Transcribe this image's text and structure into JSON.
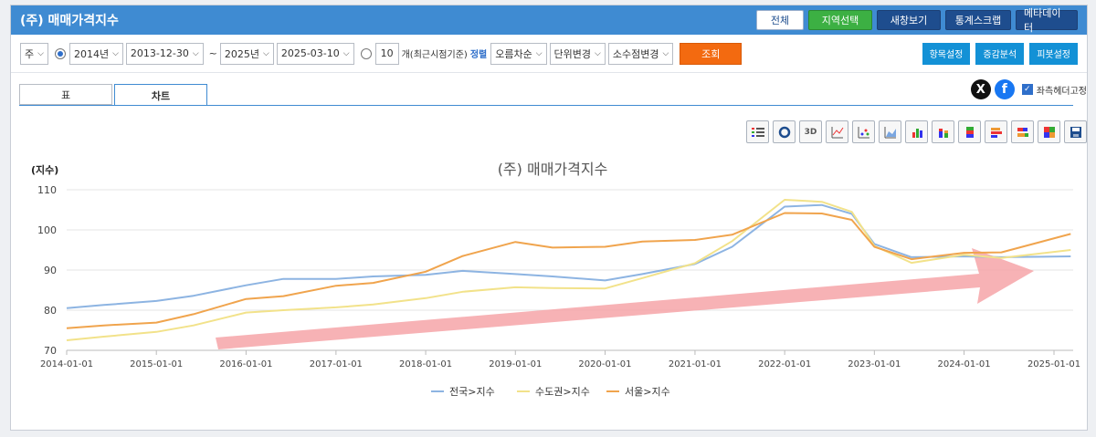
{
  "header": {
    "title": "(주) 매매가격지수",
    "buttons": [
      "전체",
      "지역선택",
      "새창보기",
      "통계스크랩",
      "메타데이터"
    ]
  },
  "controls": {
    "period": "주",
    "from_year": "2014년",
    "from_date": "2013-12-30",
    "tilde": "~",
    "to_year": "2025년",
    "to_date": "2025-03-10",
    "recent_count": "10",
    "recent_label": "개(최근시점기준)",
    "sort_label": "정렬",
    "sort_value": "오름차순",
    "unit_change": "단위변경",
    "decimal_change": "소수점변경",
    "query_label": "조회",
    "right_buttons": [
      "항목설정",
      "증감분석",
      "피봇설정"
    ]
  },
  "tabs": [
    "표",
    "차트"
  ],
  "social": {
    "x_label": "X",
    "f_label": "f",
    "fix_header_label": "좌측헤더고정"
  },
  "toolbar": {
    "icons": [
      "legend-list-icon",
      "rotate-icon",
      "3d-icon",
      "line-icon",
      "scatter-icon",
      "area-icon",
      "bar-icon",
      "stacked-bar-icon",
      "stacked-bar-alt-icon",
      "horizontal-bar-icon",
      "horizontal-stacked-icon",
      "export-image-icon",
      "save-icon"
    ],
    "threed_label": "3D"
  },
  "chart_data": {
    "type": "line",
    "title": "(주) 매매가격지수",
    "ylabel": "(지수)",
    "xlabel": "",
    "ylim": [
      70,
      110
    ],
    "yticks": [
      70,
      80,
      90,
      100,
      110
    ],
    "xticks": [
      "2014-01-01",
      "2015-01-01",
      "2016-01-01",
      "2017-01-01",
      "2018-01-01",
      "2019-01-01",
      "2020-01-01",
      "2021-01-01",
      "2022-01-01",
      "2023-01-01",
      "2024-01-01",
      "2025-01-01"
    ],
    "grid": true,
    "legend_position": "bottom",
    "annotation": "red arrow indicating upward trend",
    "series": [
      {
        "name": "전국>지수",
        "color": "#8db4e2",
        "points": [
          [
            "2014-01-01",
            80.5
          ],
          [
            "2014-06-01",
            81.3
          ],
          [
            "2015-01-01",
            82.3
          ],
          [
            "2015-06-01",
            83.6
          ],
          [
            "2016-01-01",
            86.2
          ],
          [
            "2016-06-01",
            87.8
          ],
          [
            "2017-01-01",
            87.8
          ],
          [
            "2017-06-01",
            88.4
          ],
          [
            "2018-01-01",
            88.8
          ],
          [
            "2018-06-01",
            89.8
          ],
          [
            "2019-01-01",
            89.0
          ],
          [
            "2019-06-01",
            88.4
          ],
          [
            "2020-01-01",
            87.4
          ],
          [
            "2020-06-01",
            89.0
          ],
          [
            "2021-01-01",
            91.5
          ],
          [
            "2021-06-01",
            95.8
          ],
          [
            "2022-01-01",
            105.8
          ],
          [
            "2022-06-01",
            106.2
          ],
          [
            "2022-10-01",
            104.0
          ],
          [
            "2023-01-01",
            96.5
          ],
          [
            "2023-06-01",
            93.2
          ],
          [
            "2024-01-01",
            93.4
          ],
          [
            "2024-06-01",
            93.2
          ],
          [
            "2025-03-10",
            93.4
          ]
        ]
      },
      {
        "name": "수도권>지수",
        "color": "#f2e28a",
        "points": [
          [
            "2014-01-01",
            72.5
          ],
          [
            "2014-06-01",
            73.4
          ],
          [
            "2015-01-01",
            74.6
          ],
          [
            "2015-06-01",
            76.2
          ],
          [
            "2016-01-01",
            79.4
          ],
          [
            "2016-06-01",
            80.0
          ],
          [
            "2017-01-01",
            80.7
          ],
          [
            "2017-06-01",
            81.4
          ],
          [
            "2018-01-01",
            83.0
          ],
          [
            "2018-06-01",
            84.6
          ],
          [
            "2019-01-01",
            85.7
          ],
          [
            "2019-06-01",
            85.5
          ],
          [
            "2020-01-01",
            85.4
          ],
          [
            "2020-06-01",
            88.0
          ],
          [
            "2021-01-01",
            91.7
          ],
          [
            "2021-06-01",
            97.2
          ],
          [
            "2022-01-01",
            107.5
          ],
          [
            "2022-06-01",
            107.0
          ],
          [
            "2022-10-01",
            104.5
          ],
          [
            "2023-01-01",
            96.0
          ],
          [
            "2023-06-01",
            91.8
          ],
          [
            "2024-01-01",
            93.8
          ],
          [
            "2024-06-01",
            93.0
          ],
          [
            "2025-03-10",
            95.0
          ]
        ]
      },
      {
        "name": "서울>지수",
        "color": "#f0a44d",
        "points": [
          [
            "2014-01-01",
            75.5
          ],
          [
            "2014-06-01",
            76.2
          ],
          [
            "2015-01-01",
            76.9
          ],
          [
            "2015-06-01",
            79.0
          ],
          [
            "2016-01-01",
            82.8
          ],
          [
            "2016-06-01",
            83.5
          ],
          [
            "2017-01-01",
            86.1
          ],
          [
            "2017-06-01",
            86.8
          ],
          [
            "2018-01-01",
            89.6
          ],
          [
            "2018-06-01",
            93.5
          ],
          [
            "2019-01-01",
            97.0
          ],
          [
            "2019-06-01",
            95.6
          ],
          [
            "2020-01-01",
            95.8
          ],
          [
            "2020-06-01",
            97.1
          ],
          [
            "2021-01-01",
            97.5
          ],
          [
            "2021-06-01",
            98.8
          ],
          [
            "2022-01-01",
            104.2
          ],
          [
            "2022-06-01",
            104.1
          ],
          [
            "2022-10-01",
            102.5
          ],
          [
            "2023-01-01",
            95.8
          ],
          [
            "2023-06-01",
            92.7
          ],
          [
            "2024-01-01",
            94.3
          ],
          [
            "2024-06-01",
            94.4
          ],
          [
            "2025-03-10",
            99.0
          ]
        ]
      }
    ]
  }
}
